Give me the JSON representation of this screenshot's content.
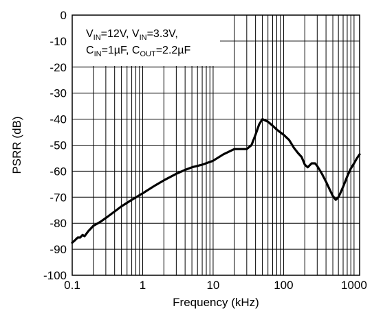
{
  "chart_data": {
    "type": "line",
    "title": "",
    "xlabel": "Frequency (kHz)",
    "ylabel": "PSRR (dB)",
    "x_scale": "log",
    "xlim": [
      0.1,
      1200
    ],
    "ylim": [
      -100,
      0
    ],
    "x_ticks": [
      0.1,
      1,
      10,
      100,
      1000
    ],
    "x_tick_labels": [
      "0.1",
      "1",
      "10",
      "100",
      "1000"
    ],
    "y_ticks": [
      0,
      -10,
      -20,
      -30,
      -40,
      -50,
      -60,
      -70,
      -80,
      -90,
      -100
    ],
    "y_tick_labels": [
      "0",
      "-10",
      "-20",
      "-30",
      "-40",
      "-50",
      "-60",
      "-70",
      "-80",
      "-90",
      "-100"
    ],
    "grid": true,
    "annotation": {
      "line1": [
        {
          "t": "V"
        },
        {
          "t": "IN",
          "sub": true
        },
        {
          "t": "=12V, V"
        },
        {
          "t": "IN",
          "sub": true
        },
        {
          "t": "=3.3V,"
        }
      ],
      "line2": [
        {
          "t": "C"
        },
        {
          "t": "IN",
          "sub": true
        },
        {
          "t": "=1µF, C"
        },
        {
          "t": "OUT",
          "sub": true
        },
        {
          "t": "=2.2µF"
        }
      ]
    },
    "series": [
      {
        "x": [
          0.1,
          0.11,
          0.12,
          0.13,
          0.14,
          0.15,
          0.17,
          0.2,
          0.25,
          0.3,
          0.4,
          0.5,
          0.7,
          1,
          1.5,
          2,
          3,
          4,
          5,
          7,
          10,
          14,
          20,
          25,
          30,
          35,
          40,
          45,
          50,
          55,
          60,
          70,
          80,
          100,
          120,
          140,
          160,
          180,
          200,
          220,
          250,
          280,
          300,
          350,
          400,
          450,
          500,
          550,
          600,
          650,
          700,
          800,
          900,
          1000,
          1100,
          1200
        ],
        "y": [
          -87.5,
          -86.5,
          -85.5,
          -85.5,
          -84.5,
          -85,
          -83,
          -81,
          -79.5,
          -78,
          -75.5,
          -73.5,
          -71,
          -68.5,
          -65.5,
          -63.5,
          -61,
          -59.5,
          -58.5,
          -57.5,
          -56,
          -53.5,
          -51.5,
          -51.5,
          -51.5,
          -50,
          -46,
          -42,
          -40,
          -40.5,
          -41,
          -42.5,
          -44,
          -46,
          -48,
          -51,
          -53,
          -54.5,
          -57.5,
          -58.5,
          -57,
          -57,
          -58,
          -61,
          -64,
          -67,
          -69.5,
          -71,
          -70,
          -68,
          -66,
          -62,
          -59,
          -57,
          -55,
          -53.5
        ]
      }
    ]
  }
}
